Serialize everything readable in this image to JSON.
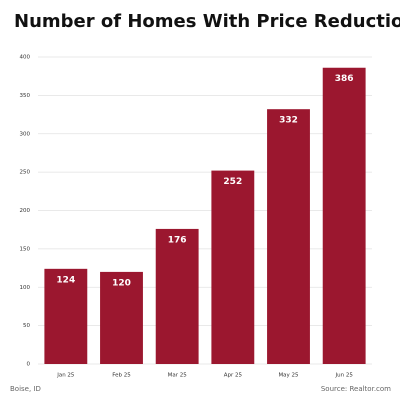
{
  "chart_data": {
    "type": "bar",
    "title": "Number of Homes With Price Reductions",
    "categories": [
      "Jan 25",
      "Feb 25",
      "Mar 25",
      "Apr 25",
      "May 25",
      "Jun 25"
    ],
    "values": [
      124,
      120,
      176,
      252,
      332,
      386
    ],
    "color": "#9b172f",
    "ylim": [
      0,
      400
    ],
    "yticks": [
      0,
      50,
      100,
      150,
      200,
      250,
      300,
      350,
      400
    ],
    "grid": true,
    "footer_left": "Boise, ID",
    "footer_right": "Source: Realtor.com"
  }
}
